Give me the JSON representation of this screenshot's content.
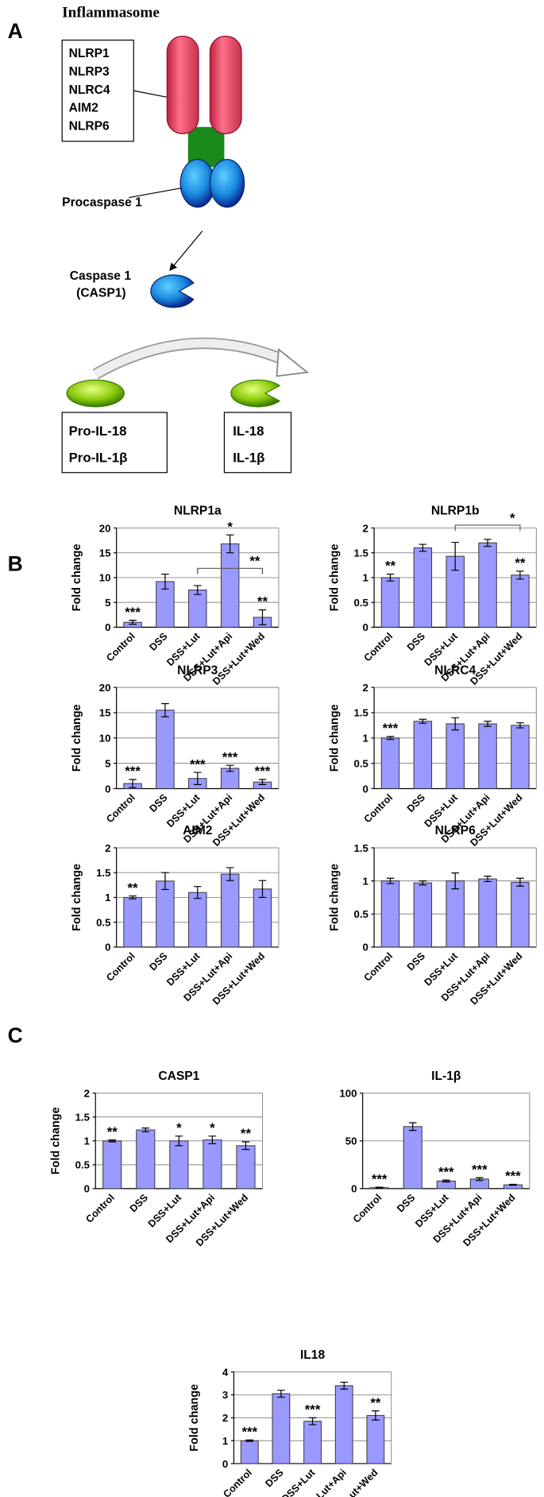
{
  "panel_labels": [
    "A",
    "B",
    "C"
  ],
  "diagram": {
    "title": "Inflammasome",
    "receptors": [
      "NLRP1",
      "NLRP3",
      "NLRC4",
      "AIM2",
      "NLRP6"
    ],
    "procaspase": "Procaspase 1",
    "caspase": [
      "Caspase 1",
      "(CASP1)"
    ],
    "substrates": [
      "Pro-IL-18",
      "Pro-IL-1β"
    ],
    "products": [
      "IL-18",
      "IL-1β"
    ]
  },
  "chart_data": [
    {
      "type": "bar",
      "title": "NLRP1a",
      "y_label": "Fold change",
      "categories": [
        "Control",
        "DSS",
        "DSS+Lut",
        "DSS+Lut+Api",
        "DSS+Lut+Wed"
      ],
      "values": [
        1.0,
        9.2,
        7.5,
        16.8,
        2.0
      ],
      "errors": [
        0.4,
        1.5,
        0.9,
        1.8,
        1.5
      ],
      "color": "#9999ff",
      "ylim": [
        0,
        20
      ],
      "yticks": [
        0,
        5,
        10,
        15,
        20
      ],
      "grid": true,
      "significance": [
        "***",
        null,
        null,
        "*",
        "**"
      ],
      "brackets": [
        {
          "from": 2,
          "to": 4,
          "label": "**"
        }
      ]
    },
    {
      "type": "bar",
      "title": "NLRP1b",
      "y_label": "Fold change",
      "categories": [
        "Control",
        "DSS",
        "DSS+Lut",
        "DSS+Lut+Api",
        "DSS+Lut+Wed"
      ],
      "values": [
        1.0,
        1.6,
        1.43,
        1.7,
        1.05
      ],
      "errors": [
        0.07,
        0.07,
        0.28,
        0.07,
        0.08
      ],
      "color": "#9999ff",
      "ylim": [
        0,
        2
      ],
      "yticks": [
        0,
        0.5,
        1,
        1.5,
        2
      ],
      "grid": true,
      "significance": [
        "**",
        null,
        null,
        null,
        "**"
      ],
      "brackets": [
        {
          "from": 2,
          "to": 4,
          "label": "*"
        }
      ]
    },
    {
      "type": "bar",
      "title": "NLRP3",
      "y_label": "Fold change",
      "categories": [
        "Control",
        "DSS",
        "DSS+Lut",
        "DSS+Lut+Api",
        "DSS+Lut+Wed"
      ],
      "values": [
        1.0,
        15.5,
        2.0,
        4.0,
        1.3
      ],
      "errors": [
        0.8,
        1.3,
        1.2,
        0.6,
        0.5
      ],
      "color": "#9999ff",
      "ylim": [
        0,
        20
      ],
      "yticks": [
        0,
        5,
        10,
        15,
        20
      ],
      "grid": true,
      "significance": [
        "***",
        null,
        "***",
        "***",
        "***"
      ]
    },
    {
      "type": "bar",
      "title": "NLRC4",
      "y_label": "Fold change",
      "categories": [
        "Control",
        "DSS",
        "DSS+Lut",
        "DSS+Lut+Api",
        "DSS+Lut+Wed"
      ],
      "values": [
        1.0,
        1.33,
        1.28,
        1.28,
        1.25
      ],
      "errors": [
        0.03,
        0.04,
        0.12,
        0.05,
        0.05
      ],
      "color": "#9999ff",
      "ylim": [
        0,
        2
      ],
      "yticks": [
        0,
        0.5,
        1,
        1.5,
        2
      ],
      "grid": true,
      "significance": [
        "***",
        null,
        null,
        null,
        null
      ]
    },
    {
      "type": "bar",
      "title": "AIM2",
      "y_label": "Fold change",
      "categories": [
        "Control",
        "DSS",
        "DSS+Lut",
        "DSS+Lut+Api",
        "DSS+Lut+Wed"
      ],
      "values": [
        1.0,
        1.33,
        1.1,
        1.47,
        1.17
      ],
      "errors": [
        0.03,
        0.17,
        0.12,
        0.13,
        0.17
      ],
      "color": "#9999ff",
      "ylim": [
        0,
        2
      ],
      "yticks": [
        0,
        0.5,
        1,
        1.5,
        2
      ],
      "grid": true,
      "significance": [
        "**",
        null,
        null,
        null,
        null
      ]
    },
    {
      "type": "bar",
      "title": "NLRP6",
      "y_label": "Fold change",
      "categories": [
        "Control",
        "DSS",
        "DSS+Lut",
        "DSS+Lut+Api",
        "DSS+Lut+Wed"
      ],
      "values": [
        1.0,
        0.97,
        1.0,
        1.03,
        0.98
      ],
      "errors": [
        0.04,
        0.03,
        0.12,
        0.04,
        0.06
      ],
      "color": "#9999ff",
      "ylim": [
        0,
        1.5
      ],
      "yticks": [
        0,
        0.5,
        1,
        1.5
      ],
      "grid": true
    },
    {
      "type": "bar",
      "title": "CASP1",
      "y_label": "Fold change",
      "categories": [
        "Control",
        "DSS",
        "DSS+Lut",
        "DSS+Lut+Api",
        "DSS+Lut+Wed"
      ],
      "values": [
        1.0,
        1.23,
        1.0,
        1.02,
        0.9
      ],
      "errors": [
        0.02,
        0.04,
        0.1,
        0.08,
        0.08
      ],
      "color": "#9999ff",
      "ylim": [
        0,
        2
      ],
      "yticks": [
        0,
        0.5,
        1,
        1.5,
        2
      ],
      "grid": true,
      "significance": [
        "**",
        null,
        "*",
        "*",
        "**"
      ]
    },
    {
      "type": "bar",
      "title": "IL-1β",
      "categories": [
        "Control",
        "DSS",
        "DSS+Lut",
        "DSS+Lut+Api",
        "DSS+Lut+Wed"
      ],
      "values": [
        1,
        65,
        8,
        10,
        4
      ],
      "errors": [
        0.5,
        4,
        1,
        1.5,
        0.5
      ],
      "color": "#9999ff",
      "ylim": [
        0,
        100
      ],
      "yticks": [
        0,
        50,
        100
      ],
      "grid": true,
      "significance": [
        "***",
        null,
        "***",
        "***",
        "***"
      ]
    },
    {
      "type": "bar",
      "title": "IL18",
      "y_label": "Fold change",
      "categories": [
        "Control",
        "DSS",
        "DSS+Lut",
        "DSS+Lut+Api",
        "DSS+Lut+Wed"
      ],
      "values": [
        1.0,
        3.05,
        1.85,
        3.4,
        2.1
      ],
      "errors": [
        0.03,
        0.15,
        0.15,
        0.15,
        0.2
      ],
      "color": "#9999ff",
      "ylim": [
        0,
        4
      ],
      "yticks": [
        0,
        1,
        2,
        3,
        4
      ],
      "grid": true,
      "significance": [
        "***",
        null,
        "***",
        null,
        "**"
      ]
    }
  ]
}
